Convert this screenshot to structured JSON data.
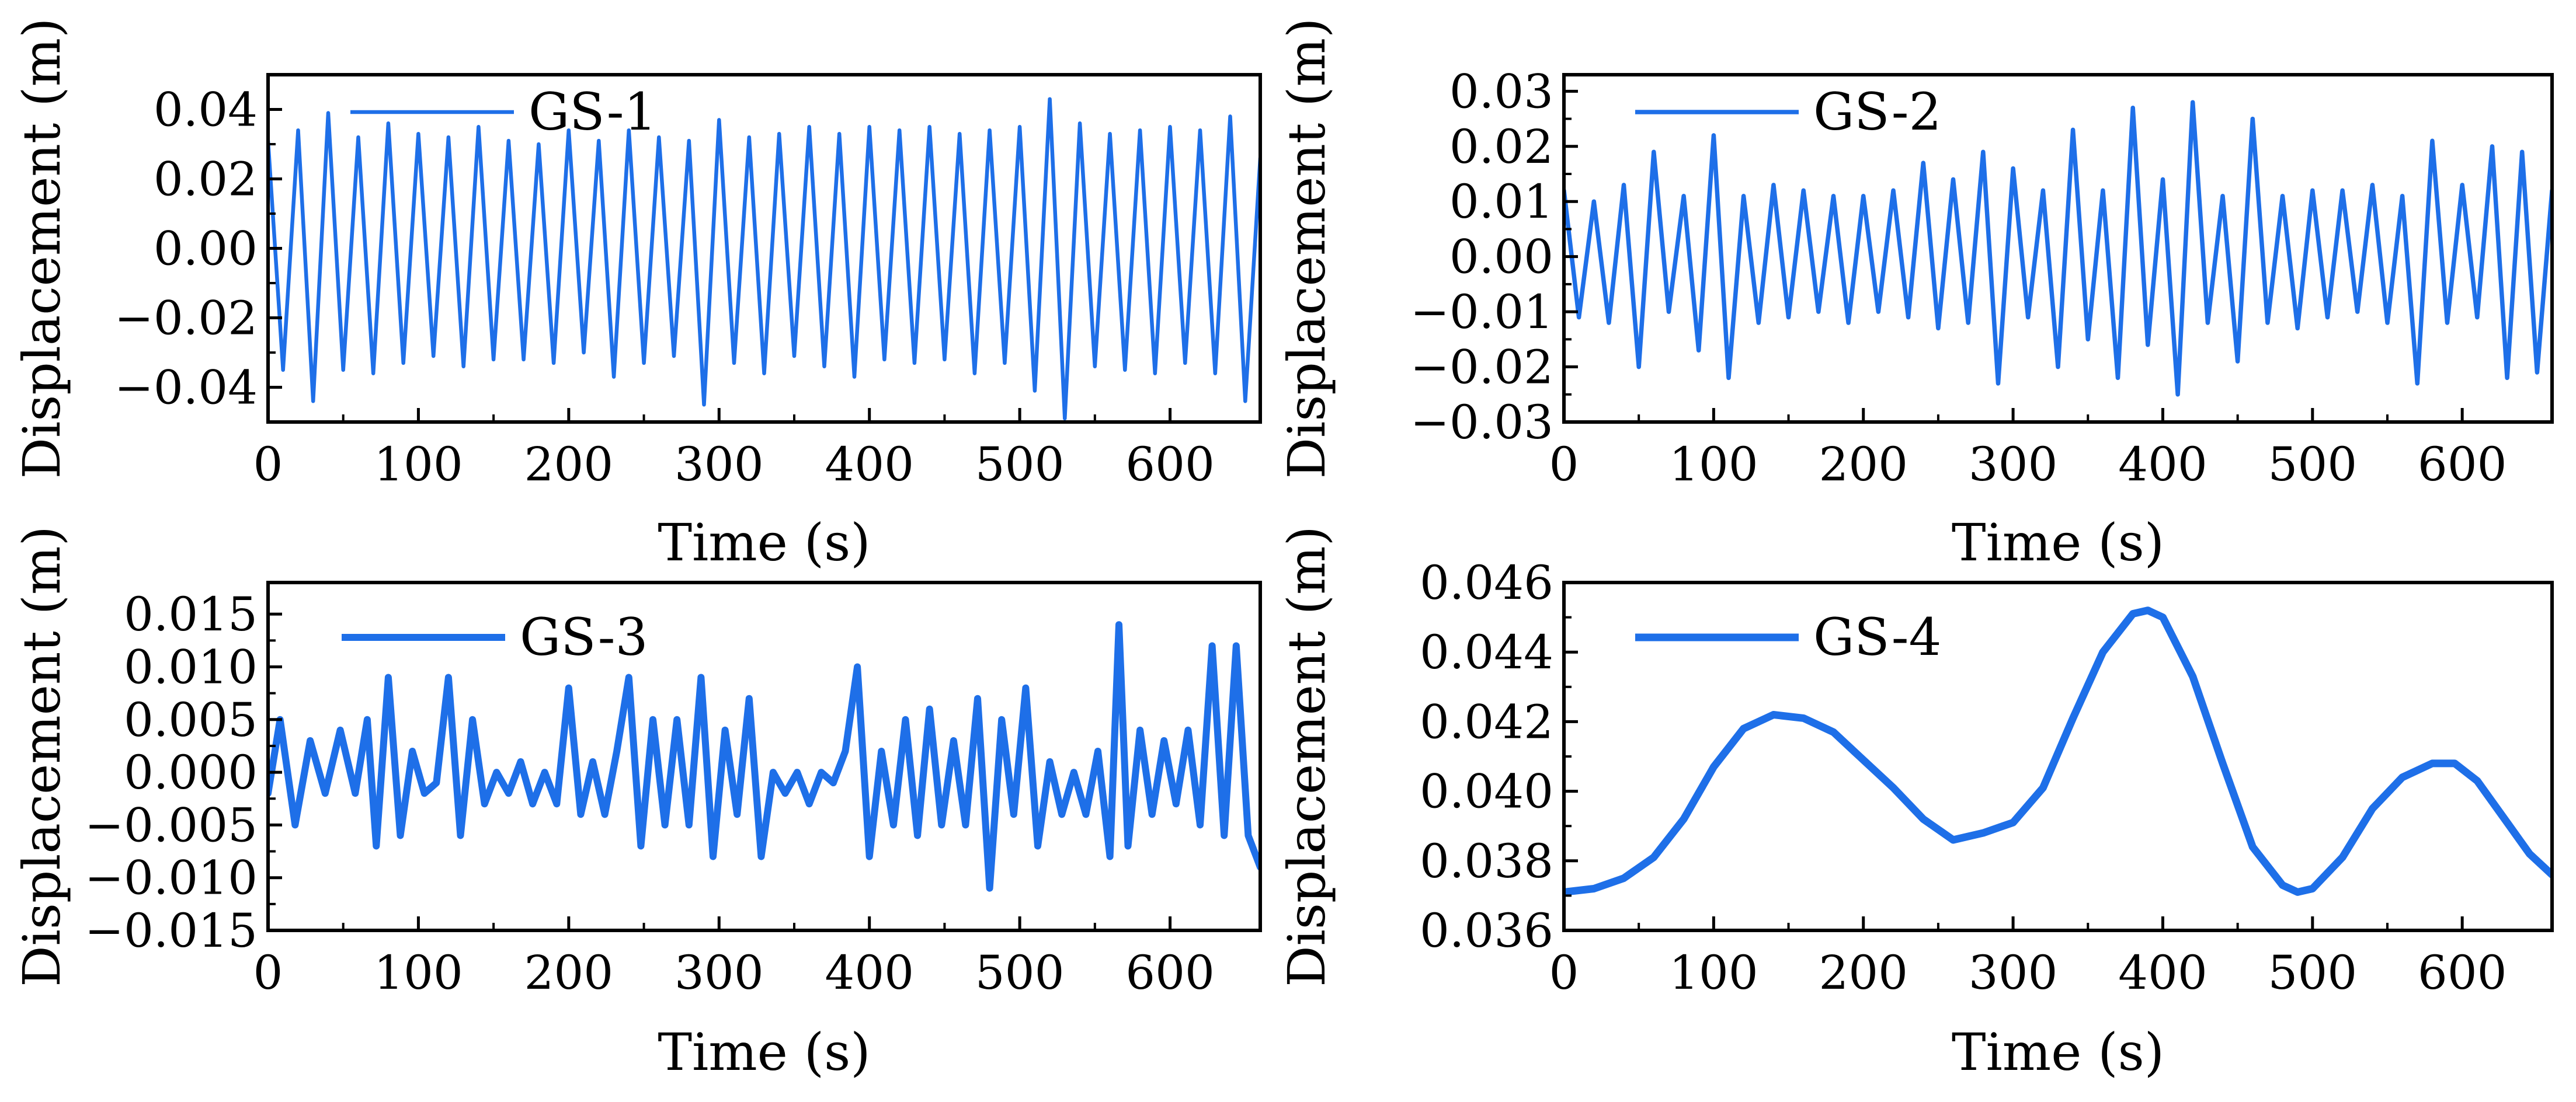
{
  "colors": {
    "series": "#1E6FE8",
    "axis": "#000000",
    "background": "#FFFFFF"
  },
  "chart_data": [
    {
      "type": "line",
      "title": "",
      "xlabel": "Time (s)",
      "ylabel": "Displacement (m)",
      "xlim": [
        0,
        660
      ],
      "ylim": [
        -0.05,
        0.05
      ],
      "x_ticks": [
        0,
        100,
        200,
        300,
        400,
        500,
        600
      ],
      "x_tick_labels": [
        "0",
        "100",
        "200",
        "300",
        "400",
        "500",
        "600"
      ],
      "y_ticks": [
        -0.04,
        -0.02,
        0.0,
        0.02,
        0.04
      ],
      "y_tick_labels": [
        "−0.04",
        "−0.02",
        "0.00",
        "0.02",
        "0.04"
      ],
      "legend": {
        "entries": [
          "GS-1"
        ],
        "placement": "top-left"
      },
      "series": [
        {
          "name": "GS-1",
          "x": [
            0,
            10,
            20,
            30,
            40,
            50,
            60,
            70,
            80,
            90,
            100,
            110,
            120,
            130,
            140,
            150,
            160,
            170,
            180,
            190,
            200,
            210,
            220,
            230,
            240,
            250,
            260,
            270,
            280,
            290,
            300,
            310,
            320,
            330,
            340,
            350,
            360,
            370,
            380,
            390,
            400,
            410,
            420,
            430,
            440,
            450,
            460,
            470,
            480,
            490,
            500,
            510,
            520,
            530,
            540,
            550,
            560,
            570,
            580,
            590,
            600,
            610,
            620,
            630,
            640,
            650,
            660
          ],
          "values": [
            0.031,
            -0.035,
            0.034,
            -0.044,
            0.039,
            -0.035,
            0.032,
            -0.036,
            0.036,
            -0.033,
            0.033,
            -0.031,
            0.032,
            -0.034,
            0.035,
            -0.032,
            0.031,
            -0.032,
            0.03,
            -0.033,
            0.034,
            -0.03,
            0.031,
            -0.037,
            0.034,
            -0.033,
            0.032,
            -0.031,
            0.031,
            -0.045,
            0.037,
            -0.033,
            0.032,
            -0.036,
            0.033,
            -0.031,
            0.035,
            -0.034,
            0.033,
            -0.037,
            0.035,
            -0.032,
            0.034,
            -0.033,
            0.035,
            -0.032,
            0.033,
            -0.036,
            0.034,
            -0.033,
            0.035,
            -0.041,
            0.043,
            -0.049,
            0.036,
            -0.034,
            0.033,
            -0.035,
            0.034,
            -0.036,
            0.035,
            -0.033,
            0.034,
            -0.036,
            0.038,
            -0.044,
            0.026
          ]
        }
      ]
    },
    {
      "type": "line",
      "title": "",
      "xlabel": "Time (s)",
      "ylabel": "Displacement (m)",
      "xlim": [
        0,
        660
      ],
      "ylim": [
        -0.03,
        0.033
      ],
      "x_ticks": [
        0,
        100,
        200,
        300,
        400,
        500,
        600
      ],
      "x_tick_labels": [
        "0",
        "100",
        "200",
        "300",
        "400",
        "500",
        "600"
      ],
      "y_ticks": [
        -0.03,
        -0.02,
        -0.01,
        0.0,
        0.01,
        0.02,
        0.03
      ],
      "y_tick_labels": [
        "−0.03",
        "−0.02",
        "−0.01",
        "0.00",
        "0.01",
        "0.02",
        "0.03"
      ],
      "legend": {
        "entries": [
          "GS-2"
        ],
        "placement": "top-left"
      },
      "series": [
        {
          "name": "GS-2",
          "x": [
            0,
            10,
            20,
            30,
            40,
            50,
            60,
            70,
            80,
            90,
            100,
            110,
            120,
            130,
            140,
            150,
            160,
            170,
            180,
            190,
            200,
            210,
            220,
            230,
            240,
            250,
            260,
            270,
            280,
            290,
            300,
            310,
            320,
            330,
            340,
            350,
            360,
            370,
            380,
            390,
            400,
            410,
            420,
            430,
            440,
            450,
            460,
            470,
            480,
            490,
            500,
            510,
            520,
            530,
            540,
            550,
            560,
            570,
            580,
            590,
            600,
            610,
            620,
            630,
            640,
            650,
            660
          ],
          "values": [
            0.012,
            -0.011,
            0.01,
            -0.012,
            0.013,
            -0.02,
            0.019,
            -0.01,
            0.011,
            -0.017,
            0.022,
            -0.022,
            0.011,
            -0.012,
            0.013,
            -0.011,
            0.012,
            -0.01,
            0.011,
            -0.012,
            0.011,
            -0.01,
            0.012,
            -0.011,
            0.017,
            -0.013,
            0.014,
            -0.012,
            0.019,
            -0.023,
            0.016,
            -0.011,
            0.012,
            -0.02,
            0.023,
            -0.015,
            0.012,
            -0.022,
            0.027,
            -0.016,
            0.014,
            -0.025,
            0.028,
            -0.012,
            0.011,
            -0.019,
            0.025,
            -0.012,
            0.011,
            -0.013,
            0.012,
            -0.011,
            0.012,
            -0.01,
            0.013,
            -0.012,
            0.011,
            -0.023,
            0.021,
            -0.012,
            0.013,
            -0.011,
            0.02,
            -0.022,
            0.019,
            -0.021,
            0.012
          ]
        }
      ]
    },
    {
      "type": "line",
      "title": "",
      "xlabel": "Time (s)",
      "ylabel": "Displacement (m)",
      "xlim": [
        0,
        660
      ],
      "ylim": [
        -0.015,
        0.018
      ],
      "x_ticks": [
        0,
        100,
        200,
        300,
        400,
        500,
        600
      ],
      "x_tick_labels": [
        "0",
        "100",
        "200",
        "300",
        "400",
        "500",
        "600"
      ],
      "y_ticks": [
        -0.015,
        -0.01,
        -0.005,
        0.0,
        0.005,
        0.01,
        0.015
      ],
      "y_tick_labels": [
        "−0.015",
        "−0.010",
        "−0.005",
        "0.000",
        "0.005",
        "0.010",
        "0.015"
      ],
      "legend": {
        "entries": [
          "GS-3"
        ],
        "placement": "top-left"
      },
      "series": [
        {
          "name": "GS-3",
          "x": [
            0,
            8,
            18,
            28,
            38,
            48,
            58,
            66,
            72,
            80,
            88,
            96,
            104,
            112,
            120,
            128,
            136,
            144,
            152,
            160,
            168,
            176,
            184,
            192,
            200,
            208,
            216,
            224,
            232,
            240,
            248,
            256,
            264,
            272,
            280,
            288,
            296,
            304,
            312,
            320,
            328,
            336,
            344,
            352,
            360,
            368,
            376,
            384,
            392,
            400,
            408,
            416,
            424,
            432,
            440,
            448,
            456,
            464,
            472,
            480,
            488,
            496,
            504,
            512,
            520,
            528,
            536,
            544,
            552,
            560,
            566,
            572,
            580,
            588,
            596,
            604,
            612,
            620,
            628,
            636,
            644,
            652,
            660
          ],
          "values": [
            -0.002,
            0.005,
            -0.005,
            0.003,
            -0.002,
            0.004,
            -0.002,
            0.005,
            -0.007,
            0.009,
            -0.006,
            0.002,
            -0.002,
            -0.001,
            0.009,
            -0.006,
            0.005,
            -0.003,
            0.0,
            -0.002,
            0.001,
            -0.003,
            0.0,
            -0.003,
            0.008,
            -0.004,
            0.001,
            -0.004,
            0.002,
            0.009,
            -0.007,
            0.005,
            -0.005,
            0.005,
            -0.005,
            0.009,
            -0.008,
            0.004,
            -0.004,
            0.007,
            -0.008,
            0.0,
            -0.002,
            0.0,
            -0.003,
            0.0,
            -0.001,
            0.002,
            0.01,
            -0.008,
            0.002,
            -0.005,
            0.005,
            -0.006,
            0.006,
            -0.005,
            0.003,
            -0.005,
            0.007,
            -0.011,
            0.005,
            -0.004,
            0.008,
            -0.007,
            0.001,
            -0.004,
            0.0,
            -0.004,
            0.002,
            -0.008,
            0.014,
            -0.007,
            0.004,
            -0.004,
            0.003,
            -0.003,
            0.004,
            -0.005,
            0.012,
            -0.006,
            0.012,
            -0.006,
            -0.009
          ]
        }
      ]
    },
    {
      "type": "line",
      "title": "",
      "xlabel": "Time (s)",
      "ylabel": "Displacement (m)",
      "xlim": [
        0,
        660
      ],
      "ylim": [
        0.036,
        0.046
      ],
      "x_ticks": [
        0,
        100,
        200,
        300,
        400,
        500,
        600
      ],
      "x_tick_labels": [
        "0",
        "100",
        "200",
        "300",
        "400",
        "500",
        "600"
      ],
      "y_ticks": [
        0.036,
        0.038,
        0.04,
        0.042,
        0.044,
        0.046
      ],
      "y_tick_labels": [
        "0.036",
        "0.038",
        "0.040",
        "0.042",
        "0.044",
        "0.046"
      ],
      "legend": {
        "entries": [
          "GS-4"
        ],
        "placement": "top-left"
      },
      "series": [
        {
          "name": "GS-4",
          "x": [
            0,
            20,
            40,
            60,
            80,
            100,
            120,
            140,
            160,
            180,
            200,
            220,
            240,
            260,
            280,
            300,
            320,
            340,
            360,
            380,
            390,
            400,
            420,
            440,
            460,
            480,
            490,
            500,
            520,
            540,
            560,
            580,
            595,
            610,
            630,
            645,
            660
          ],
          "values": [
            0.0371,
            0.0372,
            0.0375,
            0.0381,
            0.0392,
            0.0407,
            0.0418,
            0.0422,
            0.0421,
            0.0417,
            0.0409,
            0.0401,
            0.0392,
            0.0386,
            0.0388,
            0.0391,
            0.0401,
            0.0421,
            0.044,
            0.0451,
            0.0452,
            0.045,
            0.0433,
            0.0408,
            0.0384,
            0.0373,
            0.0371,
            0.0372,
            0.0381,
            0.0395,
            0.0404,
            0.0408,
            0.0408,
            0.0403,
            0.0391,
            0.0382,
            0.0376
          ]
        }
      ]
    }
  ]
}
